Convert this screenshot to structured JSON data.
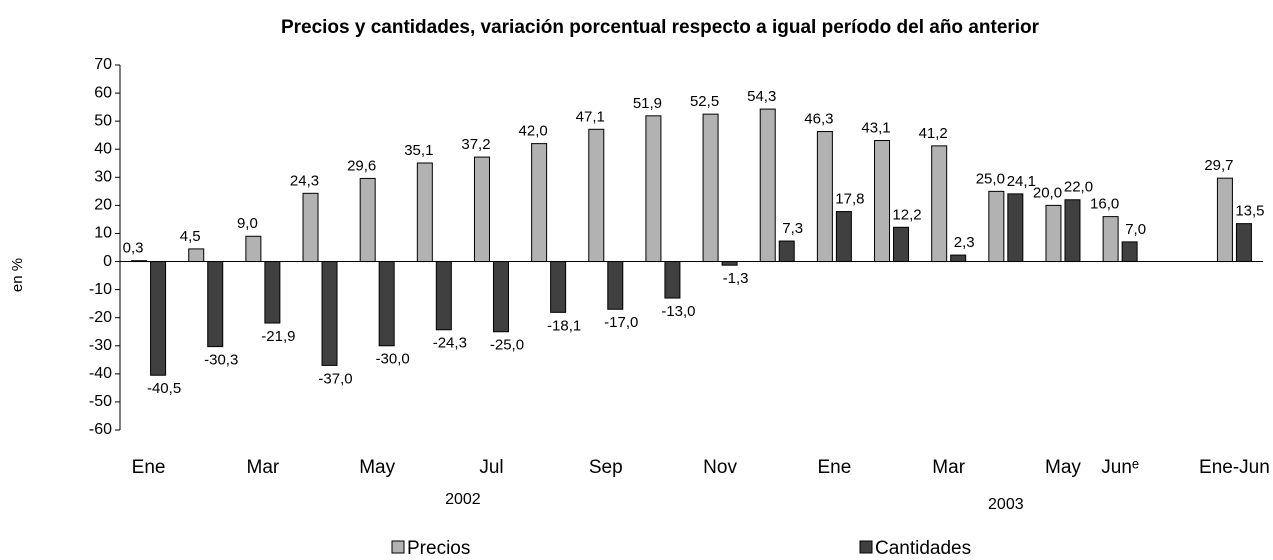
{
  "chart_data": {
    "type": "bar",
    "title": "Precios y cantidades, variación porcentual respecto a igual período del año anterior",
    "y_label": "en %",
    "categories": [
      "Ene",
      null,
      "Mar",
      null,
      "May",
      null,
      "Jul",
      null,
      "Sep",
      null,
      "Nov",
      null,
      "Ene",
      null,
      "Mar",
      null,
      "May",
      "Junᵉ",
      null,
      "Ene-Jun"
    ],
    "groups": [
      "2002",
      "2003"
    ],
    "series": [
      {
        "name": "Precios",
        "color": "#b2b2b2",
        "values": [
          0.3,
          4.5,
          9.0,
          24.3,
          29.6,
          35.1,
          37.2,
          42.0,
          47.1,
          51.9,
          52.5,
          54.3,
          46.3,
          43.1,
          41.2,
          25.0,
          20.0,
          16.0,
          null,
          29.7
        ],
        "value_labels": [
          "0,3",
          "4,5",
          "9,0",
          "24,3",
          "29,6",
          "35,1",
          "37,2",
          "42,0",
          "47,1",
          "51,9",
          "52,5",
          "54,3",
          "46,3",
          "43,1",
          "41,2",
          "25,0",
          "20,0",
          "16,0",
          null,
          "29,7"
        ]
      },
      {
        "name": "Cantidades",
        "color": "#404040",
        "values": [
          -40.5,
          -30.3,
          -21.9,
          -37.0,
          -30.0,
          -24.3,
          -25.0,
          -18.1,
          -17.0,
          -13.0,
          -1.3,
          7.3,
          17.8,
          12.2,
          2.3,
          24.1,
          22.0,
          7.0,
          null,
          13.5
        ],
        "value_labels": [
          "-40,5",
          "-30,3",
          "-21,9",
          "-37,0",
          "-30,0",
          "-24,3",
          "-25,0",
          "-18,1",
          "-17,0",
          "-13,0",
          "-1,3",
          "7,3",
          "17,8",
          "12,2",
          "2,3",
          "24,1",
          "22,0",
          "7,0",
          null,
          "13,5"
        ]
      }
    ],
    "ylim": [
      -60,
      70
    ],
    "yticks": [
      70,
      60,
      50,
      40,
      30,
      20,
      10,
      0,
      -10,
      -20,
      -30,
      -40,
      -50,
      -60
    ]
  }
}
